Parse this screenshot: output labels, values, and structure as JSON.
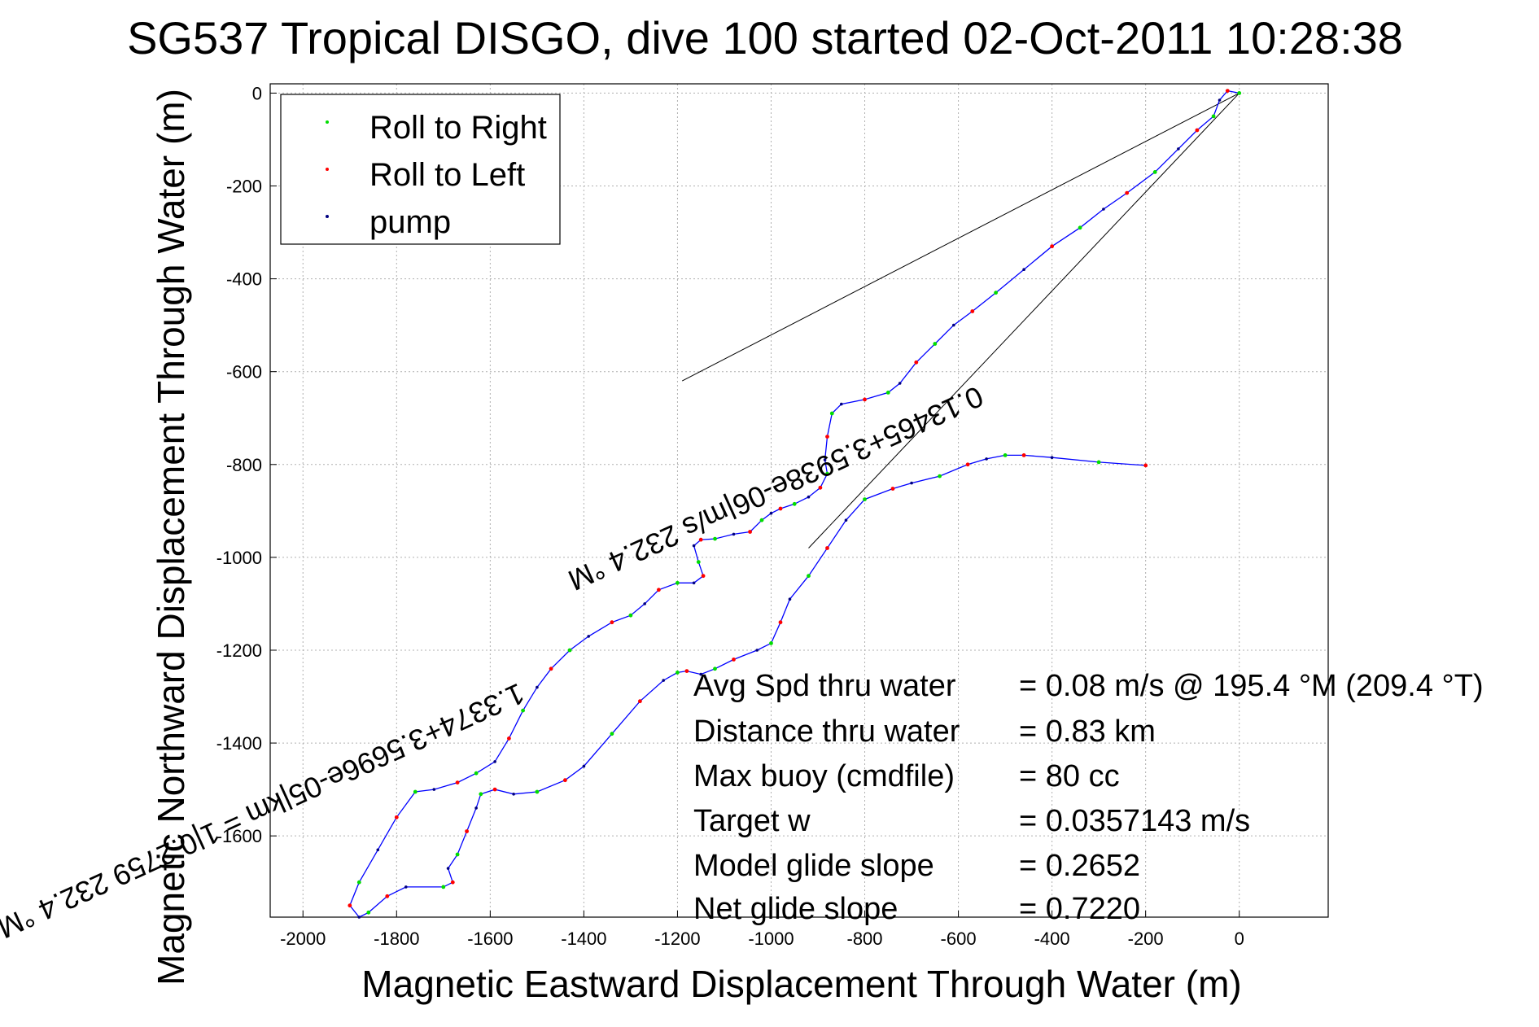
{
  "chart_data": {
    "type": "scatter",
    "title": "SG537 Tropical DISGO, dive 100 started 02-Oct-2011 10:28:38",
    "xlabel": "Magnetic Eastward Displacement Through Water (m)",
    "ylabel": "Magnetic Northward Displacement Through Water (m)",
    "xlim": [
      -2070,
      190
    ],
    "ylim": [
      -1775,
      20
    ],
    "grid": true,
    "legend_position": "top-left",
    "x_ticks": [
      "-2000",
      "-1800",
      "-1600",
      "-1400",
      "-1200",
      "-1000",
      "-800",
      "-600",
      "-400",
      "-200",
      "0"
    ],
    "y_ticks": [
      "0",
      "-200",
      "-400",
      "-600",
      "-800",
      "-1000",
      "-1200",
      "-1400",
      "-1600"
    ],
    "legend": [
      {
        "label": "Roll to Right",
        "color": "#00dd00"
      },
      {
        "label": "Roll to Left",
        "color": "#ff0000"
      },
      {
        "label": "pump",
        "color": "#000080"
      }
    ],
    "series": [
      {
        "name": "track",
        "color": "#0000ff",
        "points": [
          [
            0,
            0
          ],
          [
            -25,
            5
          ],
          [
            -42,
            -15
          ],
          [
            -55,
            -50
          ],
          [
            -90,
            -80
          ],
          [
            -130,
            -120
          ],
          [
            -180,
            -170
          ],
          [
            -240,
            -215
          ],
          [
            -290,
            -250
          ],
          [
            -340,
            -290
          ],
          [
            -400,
            -330
          ],
          [
            -460,
            -380
          ],
          [
            -520,
            -430
          ],
          [
            -570,
            -470
          ],
          [
            -610,
            -500
          ],
          [
            -650,
            -540
          ],
          [
            -690,
            -580
          ],
          [
            -725,
            -625
          ],
          [
            -750,
            -645
          ],
          [
            -800,
            -660
          ],
          [
            -850,
            -670
          ],
          [
            -870,
            -690
          ],
          [
            -880,
            -740
          ],
          [
            -885,
            -790
          ],
          [
            -880,
            -820
          ],
          [
            -895,
            -850
          ],
          [
            -920,
            -870
          ],
          [
            -950,
            -885
          ],
          [
            -980,
            -895
          ],
          [
            -1000,
            -905
          ],
          [
            -1020,
            -920
          ],
          [
            -1045,
            -945
          ],
          [
            -1080,
            -950
          ],
          [
            -1120,
            -960
          ],
          [
            -1150,
            -962
          ],
          [
            -1165,
            -975
          ],
          [
            -1155,
            -1010
          ],
          [
            -1145,
            -1040
          ],
          [
            -1165,
            -1055
          ],
          [
            -1200,
            -1055
          ],
          [
            -1240,
            -1070
          ],
          [
            -1270,
            -1100
          ],
          [
            -1300,
            -1125
          ],
          [
            -1340,
            -1140
          ],
          [
            -1390,
            -1170
          ],
          [
            -1430,
            -1200
          ],
          [
            -1470,
            -1240
          ],
          [
            -1500,
            -1280
          ],
          [
            -1530,
            -1330
          ],
          [
            -1560,
            -1390
          ],
          [
            -1590,
            -1440
          ],
          [
            -1630,
            -1465
          ],
          [
            -1670,
            -1485
          ],
          [
            -1720,
            -1500
          ],
          [
            -1760,
            -1505
          ],
          [
            -1800,
            -1560
          ],
          [
            -1840,
            -1630
          ],
          [
            -1880,
            -1700
          ],
          [
            -1900,
            -1750
          ],
          [
            -1880,
            -1775
          ],
          [
            -1860,
            -1765
          ],
          [
            -1820,
            -1730
          ],
          [
            -1780,
            -1710
          ],
          [
            -1700,
            -1710
          ],
          [
            -1680,
            -1700
          ],
          [
            -1690,
            -1670
          ],
          [
            -1670,
            -1640
          ],
          [
            -1650,
            -1590
          ],
          [
            -1630,
            -1540
          ],
          [
            -1620,
            -1510
          ],
          [
            -1590,
            -1500
          ],
          [
            -1550,
            -1510
          ],
          [
            -1500,
            -1505
          ],
          [
            -1440,
            -1480
          ],
          [
            -1400,
            -1450
          ],
          [
            -1340,
            -1380
          ],
          [
            -1280,
            -1310
          ],
          [
            -1230,
            -1265
          ],
          [
            -1200,
            -1248
          ],
          [
            -1180,
            -1245
          ],
          [
            -1150,
            -1252
          ],
          [
            -1120,
            -1240
          ],
          [
            -1080,
            -1220
          ],
          [
            -1030,
            -1200
          ],
          [
            -1000,
            -1185
          ],
          [
            -980,
            -1140
          ],
          [
            -960,
            -1090
          ],
          [
            -920,
            -1040
          ],
          [
            -880,
            -980
          ],
          [
            -840,
            -920
          ],
          [
            -800,
            -875
          ],
          [
            -740,
            -852
          ],
          [
            -700,
            -840
          ],
          [
            -640,
            -825
          ],
          [
            -580,
            -800
          ],
          [
            -540,
            -788
          ],
          [
            -500,
            -780
          ],
          [
            -460,
            -780
          ],
          [
            -400,
            -785
          ],
          [
            -300,
            -795
          ],
          [
            -200,
            -802
          ]
        ]
      }
    ],
    "reference_lines": [
      {
        "from": [
          -1190,
          -620
        ],
        "to": [
          0,
          0
        ]
      },
      {
        "from": [
          -920,
          -980
        ],
        "to": [
          0,
          0
        ]
      }
    ],
    "line_labels": [
      {
        "text": "1.3374+3.5696e-05|km = 1|0.2759 232.4 °M",
        "angle_deg": -24.5,
        "at": [
          -1540,
          -1270
        ]
      },
      {
        "text": "0.13465+3.5938e-06|m/s 232.4 °M",
        "angle_deg": -24.5,
        "at": [
          -560,
          -630
        ]
      }
    ],
    "summary": [
      {
        "label": "Avg Spd thru water",
        "value": "=  0.08 m/s @ 195.4 °M (209.4 °T)"
      },
      {
        "label": "Distance thru water",
        "value": "=  0.83 km"
      },
      {
        "label": "Max buoy (cmdfile)",
        "value": "= 80 cc"
      },
      {
        "label": "Target w",
        "value": "= 0.0357143 m/s"
      },
      {
        "label": "Model glide slope",
        "value": "= 0.2652"
      },
      {
        "label": "Net glide slope",
        "value": "= 0.7220"
      }
    ]
  }
}
